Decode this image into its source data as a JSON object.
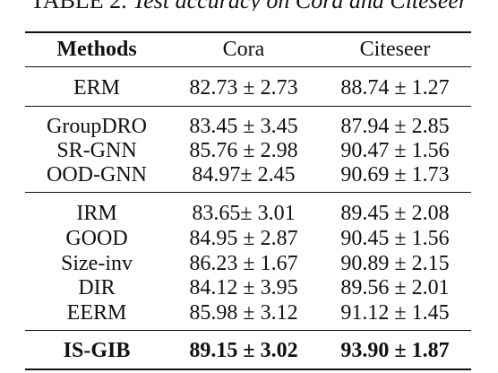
{
  "caption": {
    "lead": "TABLE 2.",
    "rest": "Test accuracy on Cora and Citeseer"
  },
  "headers": [
    "Methods",
    "Cora",
    "Citeseer"
  ],
  "groups": [
    [
      {
        "method": "ERM",
        "cora": "82.73 ± 2.73",
        "citeseer": "88.74 ± 1.27"
      }
    ],
    [
      {
        "method": "GroupDRO",
        "cora": "83.45 ± 3.45",
        "citeseer": "87.94 ± 2.85"
      },
      {
        "method": "SR-GNN",
        "cora": "85.76 ± 2.98",
        "citeseer": "90.47 ± 1.56"
      },
      {
        "method": "OOD-GNN",
        "cora": "84.97± 2.45",
        "citeseer": "90.69 ± 1.73"
      }
    ],
    [
      {
        "method": "IRM",
        "cora": "83.65± 3.01",
        "citeseer": "89.45 ± 2.08"
      },
      {
        "method": "GOOD",
        "cora": "84.95 ± 2.87",
        "citeseer": "90.45 ± 1.56"
      },
      {
        "method": "Size-inv",
        "cora": "86.23 ± 1.67",
        "citeseer": "90.89 ± 2.15"
      },
      {
        "method": "DIR",
        "cora": "84.12 ± 3.95",
        "citeseer": "89.56 ± 2.01"
      },
      {
        "method": "EERM",
        "cora": "85.98 ± 3.12",
        "citeseer": "91.12 ± 1.45"
      }
    ],
    [
      {
        "method": "IS-GIB",
        "cora": "89.15 ± 3.02",
        "citeseer": "93.90 ± 1.87"
      }
    ]
  ]
}
